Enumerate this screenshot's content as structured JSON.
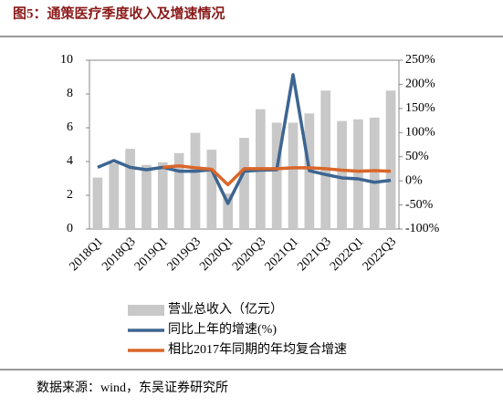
{
  "title": "图5：通策医疗季度收入及增速情况",
  "source": "数据来源：wind，东吴证券研究所",
  "chart_data": {
    "type": "bar-line",
    "categories": [
      "2018Q1",
      null,
      "2018Q3",
      null,
      "2019Q1",
      null,
      "2019Q3",
      null,
      "2020Q1",
      null,
      "2020Q3",
      null,
      "2021Q1",
      null,
      "2021Q3",
      null,
      "2022Q1",
      null,
      "2022Q3"
    ],
    "ylim": [
      0,
      10
    ],
    "yticks": [
      0,
      2,
      4,
      6,
      8,
      10
    ],
    "y2lim": [
      -100,
      250
    ],
    "y2ticks": [
      {
        "value": -100,
        "label": "-100%"
      },
      {
        "value": -50,
        "label": "-50%"
      },
      {
        "value": 0,
        "label": "0%"
      },
      {
        "value": 50,
        "label": "50%"
      },
      {
        "value": 100,
        "label": "100%"
      },
      {
        "value": 150,
        "label": "150%"
      },
      {
        "value": 200,
        "label": "200%"
      },
      {
        "value": 250,
        "label": "250%"
      }
    ],
    "series": [
      {
        "name": "营业总收入（亿元）",
        "color": "#c8c8c8",
        "kind": "bar",
        "values": [
          3.05,
          3.9,
          4.75,
          3.8,
          3.95,
          4.5,
          5.7,
          4.7,
          2.1,
          5.4,
          7.1,
          6.3,
          6.3,
          6.85,
          8.2,
          6.4,
          6.5,
          6.6,
          8.2
        ]
      },
      {
        "name": "同比上年的增速(%)",
        "color": "#3d6591",
        "kind": "line",
        "axis": "y2",
        "values": [
          28,
          42,
          28,
          23,
          28,
          20,
          20,
          23,
          -47,
          20,
          22,
          23,
          220,
          21,
          13,
          6,
          4,
          -3,
          1
        ]
      },
      {
        "name": "相比2017年同期的年均复合增速",
        "color": "#d9662a",
        "kind": "line",
        "axis": "y2",
        "values": [
          null,
          null,
          null,
          null,
          28,
          31,
          27,
          24,
          -8,
          25,
          25,
          25,
          27,
          27,
          25,
          22,
          20,
          21,
          20
        ]
      }
    ]
  }
}
